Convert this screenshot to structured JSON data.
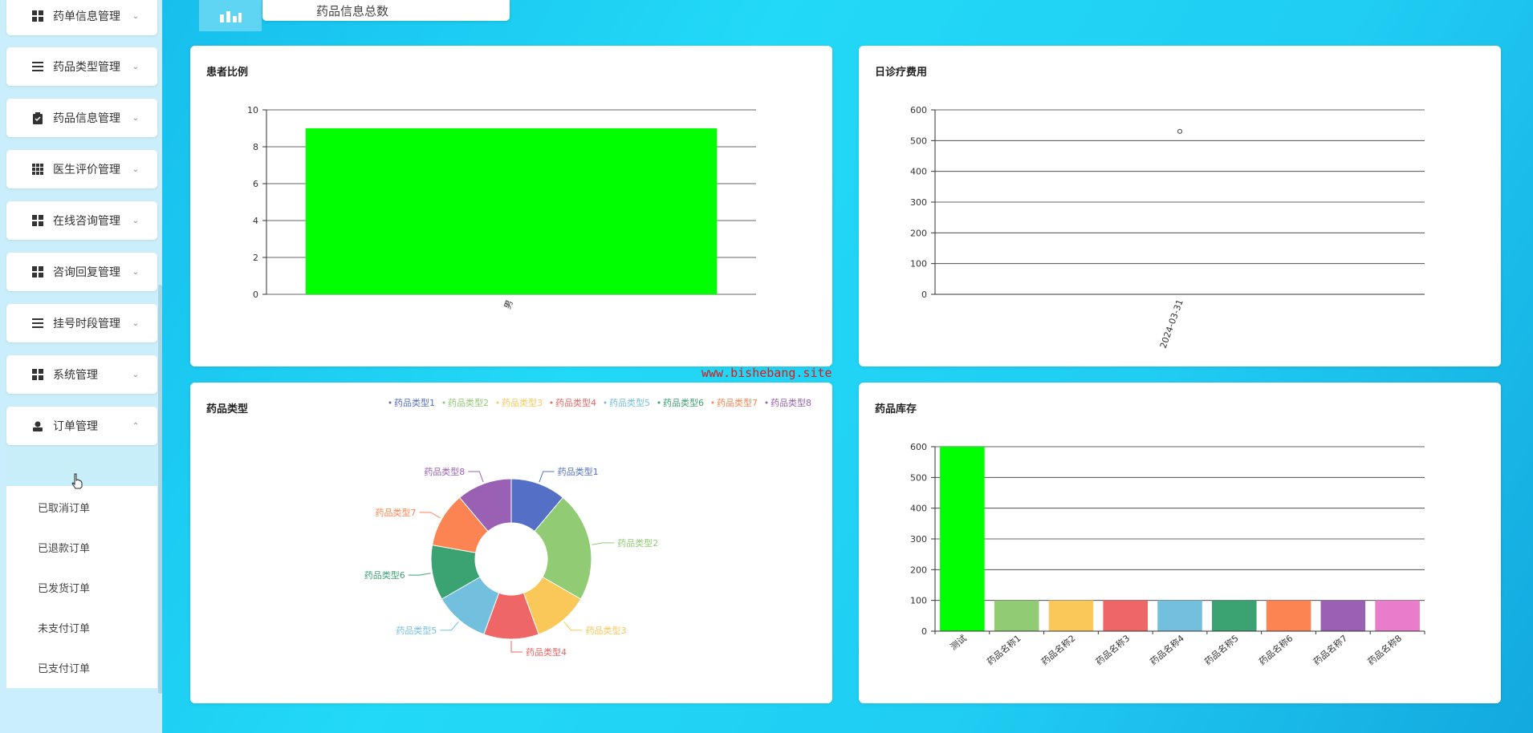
{
  "sidebar": {
    "items": [
      {
        "label": "药单信息管理",
        "icon": "grid-icon",
        "expanded": false
      },
      {
        "label": "药品类型管理",
        "icon": "list-icon",
        "expanded": false
      },
      {
        "label": "药品信息管理",
        "icon": "clipboard-icon",
        "expanded": false
      },
      {
        "label": "医生评价管理",
        "icon": "apps-icon",
        "expanded": false
      },
      {
        "label": "在线咨询管理",
        "icon": "grid-icon",
        "expanded": false
      },
      {
        "label": "咨询回复管理",
        "icon": "grid-icon",
        "expanded": false
      },
      {
        "label": "挂号时段管理",
        "icon": "list-icon",
        "expanded": false
      },
      {
        "label": "系统管理",
        "icon": "grid-icon",
        "expanded": false
      },
      {
        "label": "订单管理",
        "icon": "user-icon",
        "expanded": true
      }
    ],
    "subitems": [
      {
        "label": "",
        "active": true
      },
      {
        "label": "已取消订单"
      },
      {
        "label": "已退款订单"
      },
      {
        "label": "已发货订单"
      },
      {
        "label": "未支付订单"
      },
      {
        "label": "已支付订单"
      }
    ]
  },
  "top": {
    "card_label": "药品信息总数",
    "icon": "bar-chart-icon"
  },
  "watermark": "www.bishebang.site",
  "panels": {
    "patient_ratio": {
      "title": "患者比例"
    },
    "daily_fee": {
      "title": "日诊疗费用"
    },
    "drug_type": {
      "title": "药品类型"
    },
    "drug_stock": {
      "title": "药品库存"
    }
  },
  "chart_data": [
    {
      "type": "bar",
      "title": "患者比例",
      "categories": [
        "男"
      ],
      "values": [
        9
      ],
      "ylim": [
        0,
        10
      ],
      "yticks": [
        0,
        2,
        4,
        6,
        8,
        10
      ],
      "colors": [
        "#00ff00"
      ],
      "grid": true
    },
    {
      "type": "scatter",
      "title": "日诊疗费用",
      "x": [
        "2024-03-31"
      ],
      "values": [
        530
      ],
      "ylim": [
        0,
        600
      ],
      "yticks": [
        0,
        100,
        200,
        300,
        400,
        500,
        600
      ],
      "grid": true
    },
    {
      "type": "pie",
      "title": "药品类型",
      "donut": true,
      "legend_position": "top-right",
      "labels": [
        "药品类型1",
        "药品类型2",
        "药品类型3",
        "药品类型4",
        "药品类型5",
        "药品类型6",
        "药品类型7",
        "药品类型8"
      ],
      "values": [
        1,
        2,
        1,
        1,
        1,
        1,
        1,
        1
      ],
      "colors": [
        "#5470c6",
        "#91cc75",
        "#fac858",
        "#ee6666",
        "#73c0de",
        "#3ba272",
        "#fc8452",
        "#9a60b4"
      ]
    },
    {
      "type": "bar",
      "title": "药品库存",
      "categories": [
        "测试",
        "药品名称1",
        "药品名称2",
        "药品名称3",
        "药品名称4",
        "药品名称5",
        "药品名称6",
        "药品名称7",
        "药品名称8"
      ],
      "values": [
        600,
        100,
        100,
        100,
        100,
        100,
        100,
        100,
        100
      ],
      "ylim": [
        0,
        600
      ],
      "yticks": [
        0,
        100,
        200,
        300,
        400,
        500,
        600
      ],
      "colors": [
        "#00ff00",
        "#91cc75",
        "#fac858",
        "#ee6666",
        "#73c0de",
        "#3ba272",
        "#fc8452",
        "#9a60b4",
        "#ea7ccc"
      ],
      "grid": true
    }
  ]
}
